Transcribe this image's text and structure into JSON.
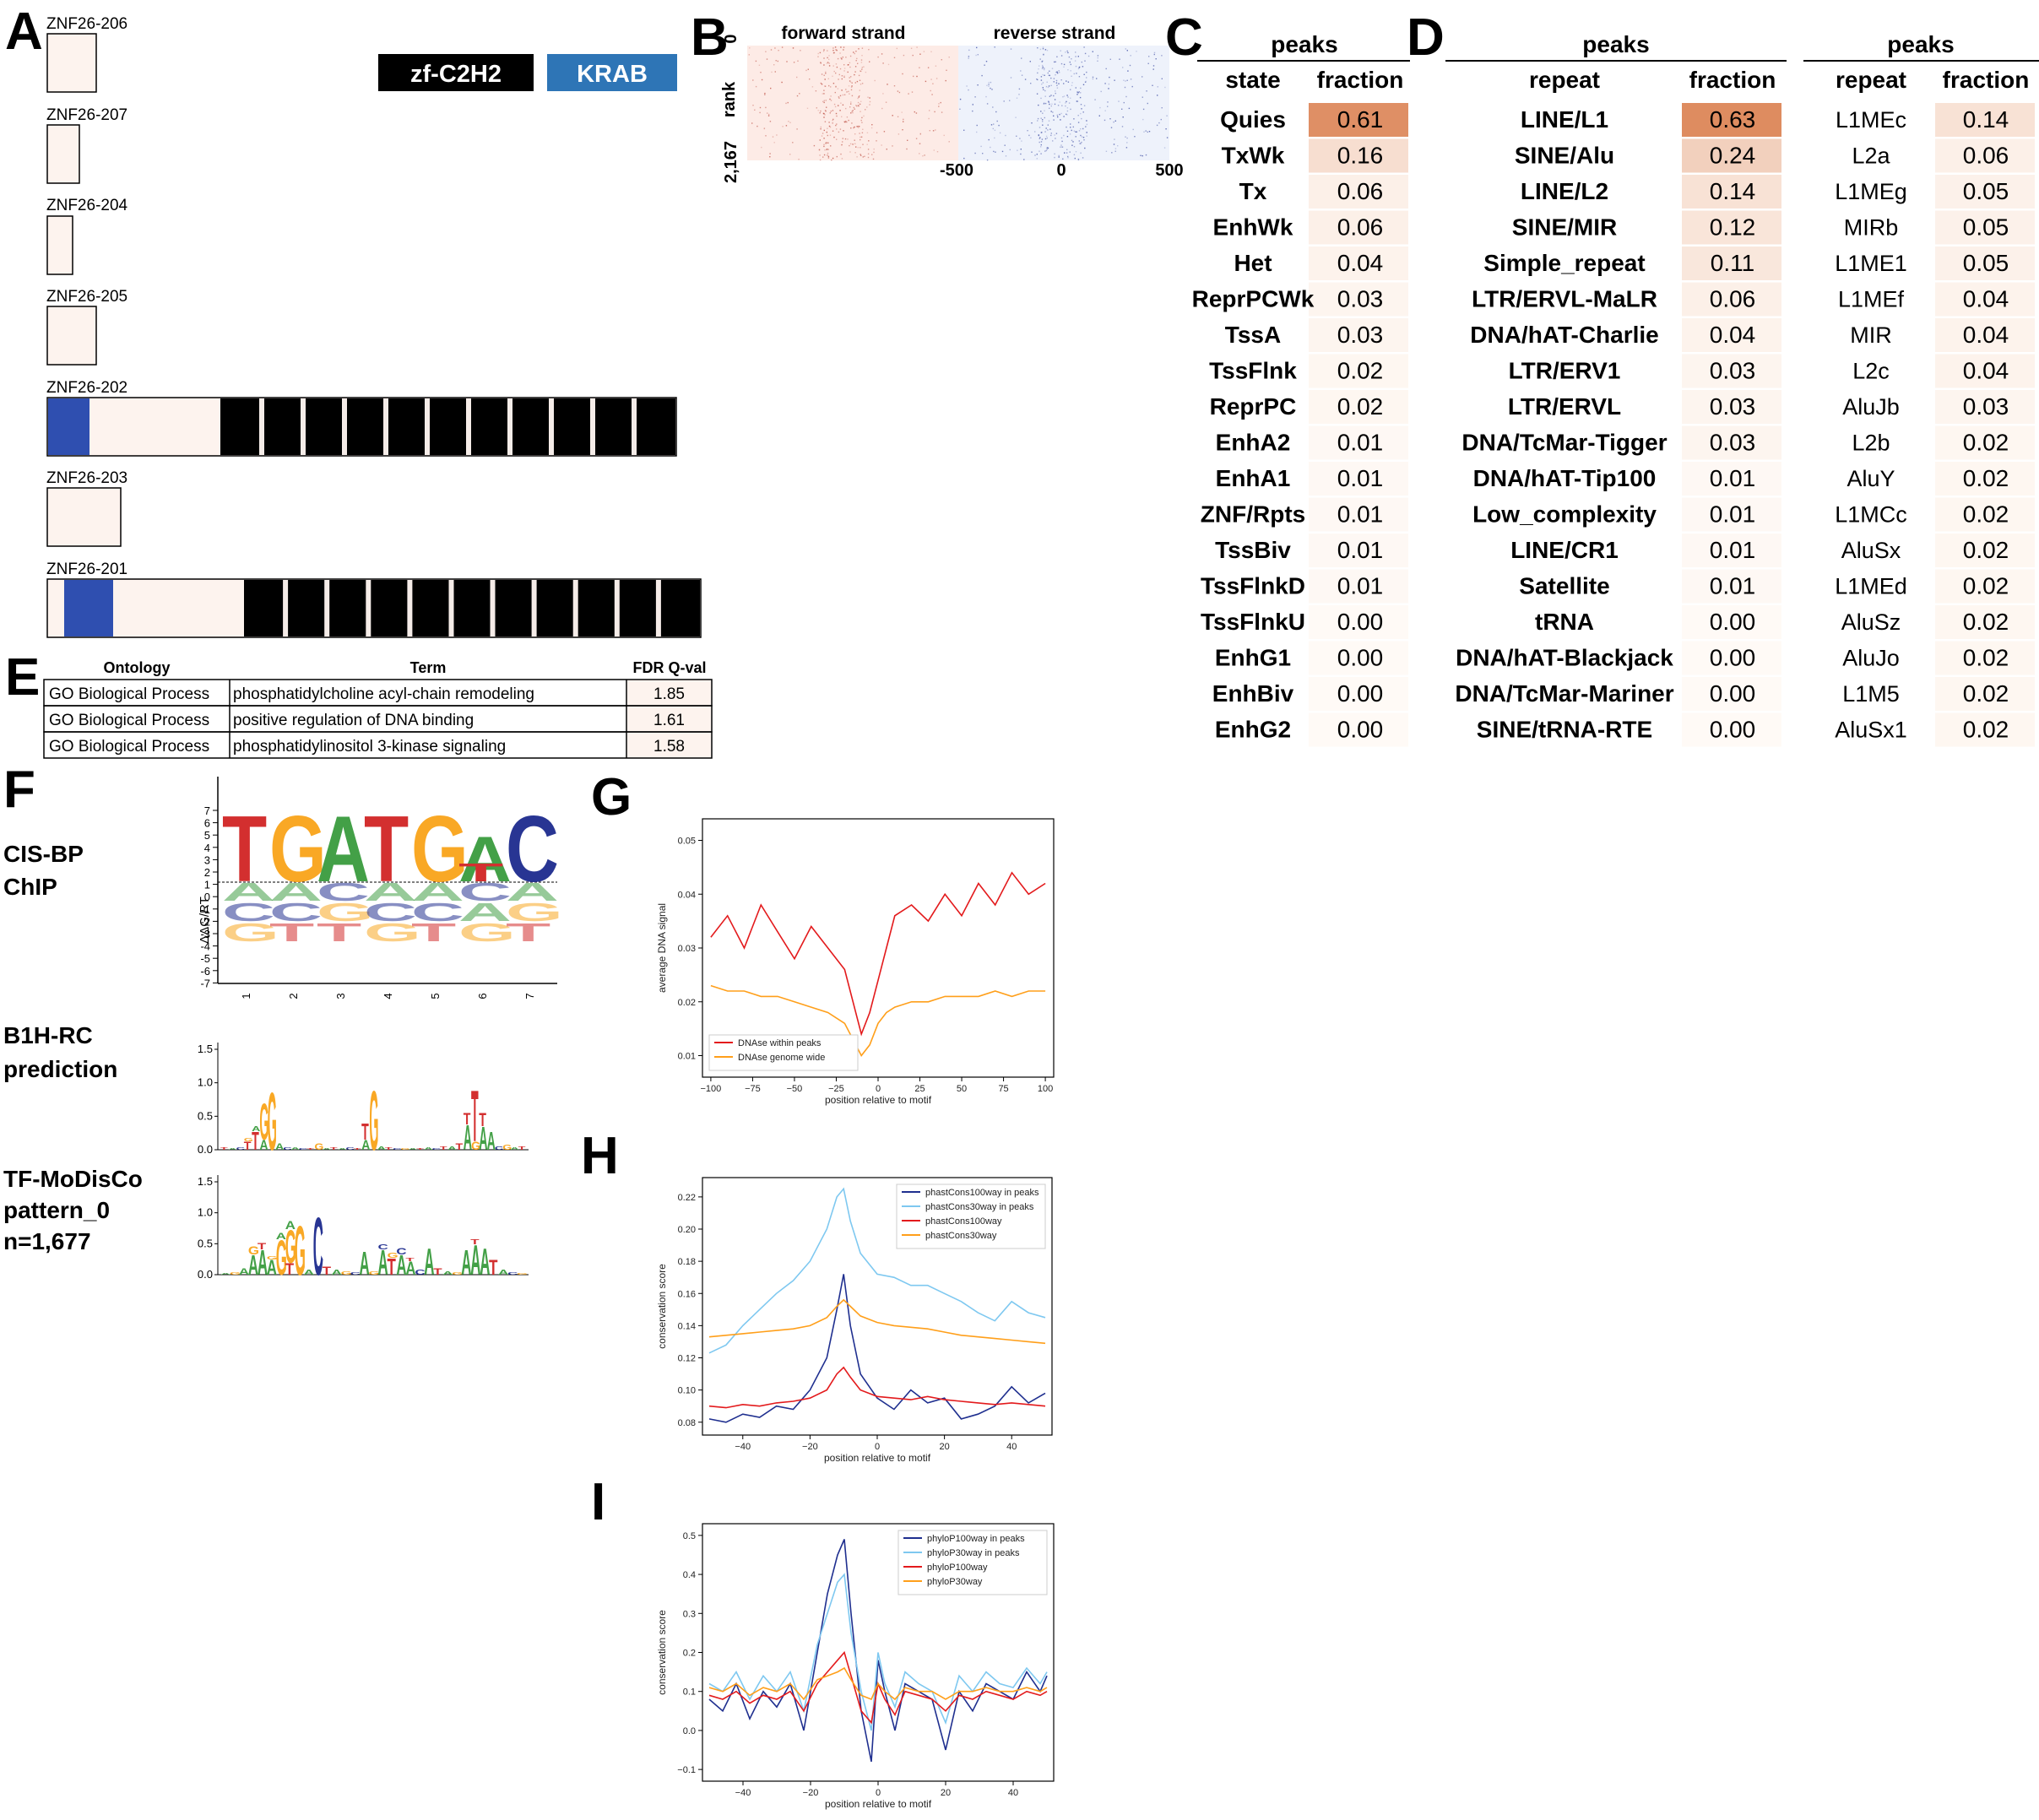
{
  "panels": {
    "A": "A",
    "B": "B",
    "C": "C",
    "D": "D",
    "E": "E",
    "F": "F",
    "G": "G",
    "H": "H",
    "I": "I"
  },
  "panel_a": {
    "isoforms": [
      "ZNF26-206",
      "ZNF26-207",
      "ZNF26-204",
      "ZNF26-205",
      "ZNF26-202",
      "ZNF26-203",
      "ZNF26-201"
    ],
    "legend": {
      "zf": "zf-C2H2",
      "krab": "KRAB"
    },
    "colors": {
      "zf": "#000000",
      "krab": "#2e75b6",
      "krab_box": "#2f4fb0",
      "body": "#fdf3ee"
    }
  },
  "panel_b": {
    "forward": "forward strand",
    "reverse": "reverse strand",
    "rank_label": "rank",
    "rank_top": "0",
    "rank_bottom": "2,167",
    "x_ticks": [
      "-500",
      "0",
      "500"
    ]
  },
  "panel_c": {
    "header": "peaks",
    "col_state": "state",
    "col_fraction": "fraction",
    "rows": [
      {
        "name": "Quies",
        "value": "0.61"
      },
      {
        "name": "TxWk",
        "value": "0.16"
      },
      {
        "name": "Tx",
        "value": "0.06"
      },
      {
        "name": "EnhWk",
        "value": "0.06"
      },
      {
        "name": "Het",
        "value": "0.04"
      },
      {
        "name": "ReprPCWk",
        "value": "0.03"
      },
      {
        "name": "TssA",
        "value": "0.03"
      },
      {
        "name": "TssFlnk",
        "value": "0.02"
      },
      {
        "name": "ReprPC",
        "value": "0.02"
      },
      {
        "name": "EnhA2",
        "value": "0.01"
      },
      {
        "name": "EnhA1",
        "value": "0.01"
      },
      {
        "name": "ZNF/Rpts",
        "value": "0.01"
      },
      {
        "name": "TssBiv",
        "value": "0.01"
      },
      {
        "name": "TssFlnkD",
        "value": "0.01"
      },
      {
        "name": "TssFlnkU",
        "value": "0.00"
      },
      {
        "name": "EnhG1",
        "value": "0.00"
      },
      {
        "name": "EnhBiv",
        "value": "0.00"
      },
      {
        "name": "EnhG2",
        "value": "0.00"
      }
    ]
  },
  "panel_d": {
    "header": "peaks",
    "col_repeat": "repeat",
    "col_fraction": "fraction",
    "family_rows": [
      {
        "name": "LINE/L1",
        "value": "0.63"
      },
      {
        "name": "SINE/Alu",
        "value": "0.24"
      },
      {
        "name": "LINE/L2",
        "value": "0.14"
      },
      {
        "name": "SINE/MIR",
        "value": "0.12"
      },
      {
        "name": "Simple_repeat",
        "value": "0.11"
      },
      {
        "name": "LTR/ERVL-MaLR",
        "value": "0.06"
      },
      {
        "name": "DNA/hAT-Charlie",
        "value": "0.04"
      },
      {
        "name": "LTR/ERV1",
        "value": "0.03"
      },
      {
        "name": "LTR/ERVL",
        "value": "0.03"
      },
      {
        "name": "DNA/TcMar-Tigger",
        "value": "0.03"
      },
      {
        "name": "DNA/hAT-Tip100",
        "value": "0.01"
      },
      {
        "name": "Low_complexity",
        "value": "0.01"
      },
      {
        "name": "LINE/CR1",
        "value": "0.01"
      },
      {
        "name": "Satellite",
        "value": "0.01"
      },
      {
        "name": "tRNA",
        "value": "0.00"
      },
      {
        "name": "DNA/hAT-Blackjack",
        "value": "0.00"
      },
      {
        "name": "DNA/TcMar-Mariner",
        "value": "0.00"
      },
      {
        "name": "SINE/tRNA-RTE",
        "value": "0.00"
      }
    ],
    "subfamily_rows": [
      {
        "name": "L1MEc",
        "value": "0.14"
      },
      {
        "name": "L2a",
        "value": "0.06"
      },
      {
        "name": "L1MEg",
        "value": "0.05"
      },
      {
        "name": "MIRb",
        "value": "0.05"
      },
      {
        "name": "L1ME1",
        "value": "0.05"
      },
      {
        "name": "L1MEf",
        "value": "0.04"
      },
      {
        "name": "MIR",
        "value": "0.04"
      },
      {
        "name": "L2c",
        "value": "0.04"
      },
      {
        "name": "AluJb",
        "value": "0.03"
      },
      {
        "name": "L2b",
        "value": "0.02"
      },
      {
        "name": "AluY",
        "value": "0.02"
      },
      {
        "name": "L1MCc",
        "value": "0.02"
      },
      {
        "name": "AluSx",
        "value": "0.02"
      },
      {
        "name": "L1MEd",
        "value": "0.02"
      },
      {
        "name": "AluSz",
        "value": "0.02"
      },
      {
        "name": "AluJo",
        "value": "0.02"
      },
      {
        "name": "L1M5",
        "value": "0.02"
      },
      {
        "name": "AluSx1",
        "value": "0.02"
      }
    ]
  },
  "panel_e": {
    "headers": [
      "Ontology",
      "Term",
      "FDR Q-val"
    ],
    "rows": [
      {
        "ontology": "GO Biological Process",
        "term": "phosphatidylcholine acyl-chain remodeling",
        "q": "1.85"
      },
      {
        "ontology": "GO Biological Process",
        "term": "positive regulation of DNA binding",
        "q": "1.61"
      },
      {
        "ontology": "GO Biological Process",
        "term": "phosphatidylinositol 3-kinase signaling",
        "q": "1.58"
      }
    ]
  },
  "panel_f": {
    "labels": {
      "cisbp_line1": "CIS-BP",
      "cisbp_line2": "ChIP",
      "b1h_line1": "B1H-RC",
      "b1h_line2": "prediction",
      "tfmo_line1": "TF-MoDisCo",
      "tfmo_line2": "pattern_0",
      "tfmo_line3": "n=1,677"
    },
    "cisbp": {
      "ylabel": "ΔΔG/RT",
      "yticks": [
        "7",
        "6",
        "5",
        "4",
        "3",
        "2",
        "1",
        "0",
        "-1",
        "-2",
        "-3",
        "-4",
        "-5",
        "-6",
        "-7"
      ],
      "xticks": [
        "1",
        "2",
        "3",
        "4",
        "5",
        "6",
        "7"
      ],
      "top_letters": [
        "T",
        "G",
        "A",
        "T",
        "G",
        "A",
        "C"
      ],
      "second_top": [
        "",
        "",
        "",
        "",
        "",
        "T",
        ""
      ]
    },
    "b1h": {
      "yticks": [
        "1.5",
        "1.0",
        "0.5",
        "0.0"
      ]
    },
    "tfmo": {
      "yticks": [
        "1.5",
        "1.0",
        "0.5",
        "0.0"
      ]
    }
  },
  "colors": {
    "A": "#43a047",
    "C": "#283593",
    "G": "#f9a825",
    "T": "#d32f2f"
  },
  "chart_data": [
    {
      "id": "G",
      "type": "line",
      "xlabel": "position relative to motif",
      "ylabel": "average DNA signal",
      "xlim": [
        -105,
        105
      ],
      "ylim": [
        0.006,
        0.054
      ],
      "xticks": [
        -100,
        -75,
        -50,
        -25,
        0,
        25,
        50,
        75,
        100
      ],
      "xtick_labels": [
        "−100",
        "−75",
        "−50",
        "−25",
        "0",
        "25",
        "50",
        "75",
        "100"
      ],
      "yticks": [
        0.01,
        0.02,
        0.03,
        0.04,
        0.05
      ],
      "ytick_labels": [
        "0.01",
        "0.02",
        "0.03",
        "0.04",
        "0.05"
      ],
      "legend_position": "lower-left",
      "x": [
        -100,
        -90,
        -80,
        -70,
        -60,
        -50,
        -40,
        -30,
        -20,
        -15,
        -10,
        -5,
        0,
        5,
        10,
        20,
        30,
        40,
        50,
        60,
        70,
        80,
        90,
        100
      ],
      "series": [
        {
          "name": "DNAse within peaks",
          "color": "#e31a1c",
          "values": [
            0.032,
            0.036,
            0.03,
            0.038,
            0.033,
            0.028,
            0.034,
            0.03,
            0.026,
            0.02,
            0.014,
            0.018,
            0.024,
            0.03,
            0.036,
            0.038,
            0.035,
            0.04,
            0.036,
            0.042,
            0.038,
            0.044,
            0.04,
            0.042
          ]
        },
        {
          "name": "DNAse genome wide",
          "color": "#ff9f1a",
          "values": [
            0.023,
            0.022,
            0.022,
            0.021,
            0.021,
            0.02,
            0.019,
            0.018,
            0.016,
            0.013,
            0.01,
            0.012,
            0.016,
            0.018,
            0.019,
            0.02,
            0.02,
            0.021,
            0.021,
            0.021,
            0.022,
            0.021,
            0.022,
            0.022
          ]
        }
      ]
    },
    {
      "id": "H",
      "type": "line",
      "xlabel": "position relative to motif",
      "ylabel": "conservation score",
      "xlim": [
        -52,
        52
      ],
      "ylim": [
        0.072,
        0.232
      ],
      "xticks": [
        -40,
        -20,
        0,
        20,
        40
      ],
      "xtick_labels": [
        "−40",
        "−20",
        "0",
        "20",
        "40"
      ],
      "yticks": [
        0.08,
        0.1,
        0.12,
        0.14,
        0.16,
        0.18,
        0.2,
        0.22
      ],
      "ytick_labels": [
        "0.08",
        "0.10",
        "0.12",
        "0.14",
        "0.16",
        "0.18",
        "0.20",
        "0.22"
      ],
      "legend_position": "top-right",
      "x": [
        -50,
        -45,
        -40,
        -35,
        -30,
        -25,
        -20,
        -15,
        -12,
        -10,
        -8,
        -5,
        0,
        5,
        10,
        15,
        20,
        25,
        30,
        35,
        40,
        45,
        50
      ],
      "series": [
        {
          "name": "phastCons100way in peaks",
          "color": "#1f2f8f",
          "values": [
            0.082,
            0.08,
            0.085,
            0.083,
            0.09,
            0.088,
            0.1,
            0.12,
            0.15,
            0.172,
            0.14,
            0.11,
            0.095,
            0.088,
            0.1,
            0.092,
            0.095,
            0.082,
            0.085,
            0.09,
            0.102,
            0.092,
            0.098
          ]
        },
        {
          "name": "phastCons30way in peaks",
          "color": "#7ec8f0",
          "values": [
            0.123,
            0.128,
            0.14,
            0.15,
            0.16,
            0.168,
            0.18,
            0.2,
            0.22,
            0.225,
            0.205,
            0.185,
            0.172,
            0.17,
            0.165,
            0.165,
            0.16,
            0.155,
            0.148,
            0.143,
            0.155,
            0.148,
            0.145
          ]
        },
        {
          "name": "phastCons100way",
          "color": "#e31a1c",
          "values": [
            0.09,
            0.089,
            0.091,
            0.09,
            0.092,
            0.093,
            0.095,
            0.1,
            0.11,
            0.114,
            0.108,
            0.1,
            0.096,
            0.095,
            0.094,
            0.096,
            0.094,
            0.093,
            0.092,
            0.091,
            0.092,
            0.091,
            0.09
          ]
        },
        {
          "name": "phastCons30way",
          "color": "#ff9f1a",
          "values": [
            0.133,
            0.134,
            0.135,
            0.136,
            0.137,
            0.138,
            0.14,
            0.145,
            0.152,
            0.156,
            0.152,
            0.146,
            0.142,
            0.14,
            0.139,
            0.138,
            0.136,
            0.134,
            0.133,
            0.132,
            0.131,
            0.13,
            0.129
          ]
        }
      ]
    },
    {
      "id": "I",
      "type": "line",
      "xlabel": "position relative to motif",
      "ylabel": "conservation score",
      "xlim": [
        -52,
        52
      ],
      "ylim": [
        -0.13,
        0.53
      ],
      "xticks": [
        -40,
        -20,
        0,
        20,
        40
      ],
      "xtick_labels": [
        "−40",
        "−20",
        "0",
        "20",
        "40"
      ],
      "yticks": [
        -0.1,
        0.0,
        0.1,
        0.2,
        0.3,
        0.4,
        0.5
      ],
      "ytick_labels": [
        "−0.1",
        "0.0",
        "0.1",
        "0.2",
        "0.3",
        "0.4",
        "0.5"
      ],
      "legend_position": "top-right",
      "x": [
        -50,
        -46,
        -42,
        -38,
        -34,
        -30,
        -26,
        -22,
        -18,
        -15,
        -12,
        -10,
        -8,
        -5,
        -2,
        0,
        2,
        5,
        8,
        12,
        16,
        20,
        24,
        28,
        32,
        36,
        40,
        44,
        48,
        50
      ],
      "series": [
        {
          "name": "phyloP100way in peaks",
          "color": "#1f2f8f",
          "values": [
            0.08,
            0.05,
            0.12,
            0.03,
            0.1,
            0.06,
            0.12,
            0.0,
            0.2,
            0.35,
            0.45,
            0.49,
            0.3,
            0.05,
            -0.08,
            0.18,
            0.1,
            0.0,
            0.12,
            0.1,
            0.08,
            -0.05,
            0.1,
            0.05,
            0.12,
            0.1,
            0.08,
            0.15,
            0.1,
            0.14
          ]
        },
        {
          "name": "phyloP30way in peaks",
          "color": "#7ec8f0",
          "values": [
            0.12,
            0.1,
            0.15,
            0.08,
            0.14,
            0.1,
            0.15,
            0.05,
            0.22,
            0.3,
            0.38,
            0.4,
            0.25,
            0.1,
            0.0,
            0.2,
            0.12,
            0.06,
            0.15,
            0.12,
            0.1,
            0.02,
            0.14,
            0.1,
            0.15,
            0.12,
            0.11,
            0.16,
            0.12,
            0.15
          ]
        },
        {
          "name": "phyloP100way",
          "color": "#e31a1c",
          "values": [
            0.09,
            0.08,
            0.1,
            0.07,
            0.09,
            0.08,
            0.1,
            0.05,
            0.12,
            0.15,
            0.18,
            0.2,
            0.14,
            0.05,
            0.02,
            0.12,
            0.08,
            0.04,
            0.1,
            0.09,
            0.08,
            0.05,
            0.09,
            0.08,
            0.1,
            0.09,
            0.08,
            0.1,
            0.09,
            0.1
          ]
        },
        {
          "name": "phyloP30way",
          "color": "#ff9f1a",
          "values": [
            0.11,
            0.1,
            0.12,
            0.09,
            0.11,
            0.1,
            0.12,
            0.08,
            0.13,
            0.14,
            0.15,
            0.16,
            0.13,
            0.09,
            0.08,
            0.12,
            0.1,
            0.08,
            0.11,
            0.1,
            0.1,
            0.08,
            0.1,
            0.1,
            0.11,
            0.1,
            0.1,
            0.11,
            0.1,
            0.11
          ]
        }
      ]
    }
  ]
}
